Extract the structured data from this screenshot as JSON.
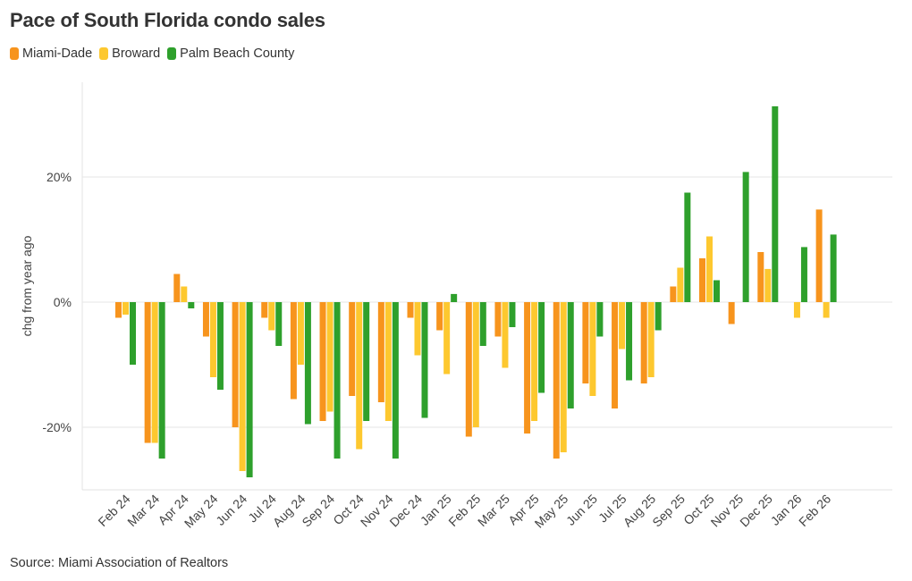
{
  "title": "Pace of South Florida condo sales",
  "source": "Source: Miami Association of Realtors",
  "chart_data": {
    "type": "bar",
    "title": "Pace of South Florida condo sales",
    "xlabel": "",
    "ylabel": "chg from year ago",
    "ylim": [
      -30,
      35
    ],
    "yticks": [
      -20,
      0,
      20
    ],
    "ytick_labels": [
      "-20%",
      "0%",
      "20%"
    ],
    "legend_position": "top-left",
    "categories": [
      "Feb 24",
      "Mar 24",
      "Apr 24",
      "May 24",
      "Jun 24",
      "Jul 24",
      "Aug 24",
      "Sep 24",
      "Oct 24",
      "Nov 24",
      "Dec 24",
      "Jan 25",
      "Feb 25",
      "Mar 25",
      "Apr 25",
      "May 25",
      "Jun 25",
      "Jul 25",
      "Aug 25",
      "Sep 25",
      "Oct 25",
      "Nov 25",
      "Dec 25",
      "Jan 26",
      "Feb 26"
    ],
    "series": [
      {
        "name": "Miami-Dade",
        "color": "#f7941d",
        "values": [
          -2.5,
          -22.5,
          4.5,
          -5.5,
          -20,
          -2.5,
          -15.5,
          -19,
          -15,
          -16,
          -2.5,
          -4.5,
          -21.5,
          -5.5,
          -21,
          -25,
          -13,
          -17,
          -13,
          2.5,
          7,
          -3.5,
          8,
          0,
          14.8
        ]
      },
      {
        "name": "Broward",
        "color": "#fdc82f",
        "values": [
          -2,
          -22.5,
          2.5,
          -12,
          -27,
          -4.5,
          -10,
          -17.5,
          -23.5,
          -19,
          -8.5,
          -11.5,
          -20,
          -10.5,
          -19,
          -24,
          -15,
          -7.5,
          -12,
          5.5,
          10.5,
          0,
          5.3,
          -2.5,
          -2.5
        ]
      },
      {
        "name": "Palm Beach County",
        "color": "#2ea02c",
        "values": [
          -10,
          -25,
          -1,
          -14,
          -28,
          -7,
          -19.5,
          -25,
          -19,
          -25,
          -18.5,
          1.3,
          -7,
          -4,
          -14.5,
          -17,
          -5.5,
          -12.5,
          -4.5,
          17.5,
          3.5,
          20.8,
          31.3,
          8.8,
          10.8
        ]
      }
    ]
  }
}
